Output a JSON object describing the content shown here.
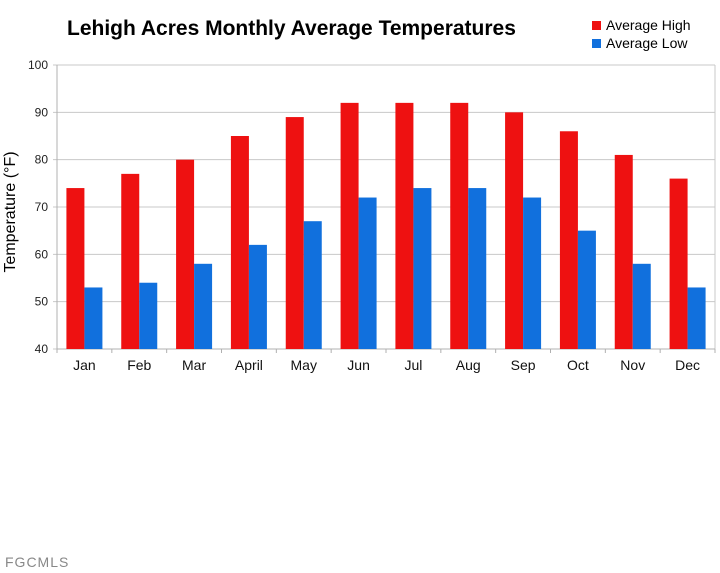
{
  "chart_data": {
    "type": "bar",
    "title": "Lehigh Acres Monthly Average Temperatures",
    "xlabel": "",
    "ylabel": "Temperature (°F)",
    "ylim": [
      40,
      100
    ],
    "yticks": [
      40,
      50,
      60,
      70,
      80,
      90,
      100
    ],
    "grid": true,
    "legend": "top-right",
    "categories": [
      "Jan",
      "Feb",
      "Mar",
      "April",
      "May",
      "Jun",
      "Jul",
      "Aug",
      "Sep",
      "Oct",
      "Nov",
      "Dec"
    ],
    "series": [
      {
        "name": "Average High",
        "color": "#ee1111",
        "values": [
          74,
          77,
          80,
          85,
          89,
          92,
          92,
          92,
          90,
          86,
          81,
          76
        ]
      },
      {
        "name": "Average Low",
        "color": "#1170dd",
        "values": [
          53,
          54,
          58,
          62,
          67,
          72,
          74,
          74,
          72,
          65,
          58,
          53
        ]
      }
    ]
  },
  "watermark": "FGCMLS"
}
